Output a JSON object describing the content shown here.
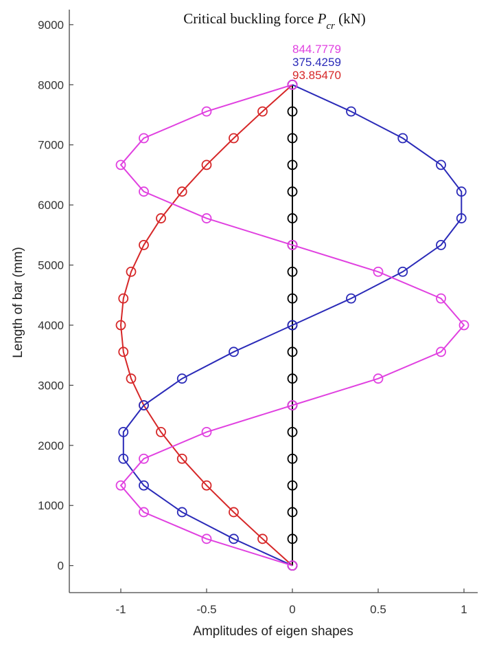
{
  "chart_data": {
    "type": "line",
    "title": "Critical buckling force",
    "title_symbol": "P",
    "title_subscript": "cr",
    "title_unit": "(kN)",
    "xlabel": "Amplitudes of eigen shapes",
    "ylabel": "Length of bar (mm)",
    "xlim": [
      -1.3,
      1.08
    ],
    "ylim": [
      -450,
      9250
    ],
    "xticks": [
      -1,
      -0.5,
      0,
      0.5,
      1
    ],
    "xtick_labels": [
      "-1",
      "-0.5",
      "0",
      "0.5",
      "1"
    ],
    "yticks": [
      0,
      1000,
      2000,
      3000,
      4000,
      5000,
      6000,
      7000,
      8000,
      9000
    ],
    "ytick_labels": [
      "0",
      "1000",
      "2000",
      "3000",
      "4000",
      "5000",
      "6000",
      "7000",
      "8000",
      "9000"
    ],
    "grid": false,
    "y": [
      0,
      444.44,
      888.89,
      1333.33,
      1777.78,
      2222.22,
      2666.67,
      3111.11,
      3555.56,
      4000,
      4444.44,
      4888.89,
      5333.33,
      5777.78,
      6222.22,
      6666.67,
      7111.11,
      7555.56,
      8000
    ],
    "series": [
      {
        "color": "#000000",
        "values": [
          0,
          0,
          0,
          0,
          0,
          0,
          0,
          0,
          0,
          0,
          0,
          0,
          0,
          0,
          0,
          0,
          0,
          0,
          0
        ]
      },
      {
        "color": "#d62728",
        "values": [
          0,
          -0.174,
          -0.342,
          -0.5,
          -0.643,
          -0.766,
          -0.866,
          -0.94,
          -0.985,
          -1.0,
          -0.985,
          -0.94,
          -0.866,
          -0.766,
          -0.643,
          -0.5,
          -0.342,
          -0.174,
          0
        ]
      },
      {
        "color": "#2a2ab8",
        "values": [
          0,
          -0.342,
          -0.643,
          -0.866,
          -0.985,
          -0.985,
          -0.866,
          -0.643,
          -0.342,
          0,
          0.342,
          0.643,
          0.866,
          0.985,
          0.985,
          0.866,
          0.643,
          0.342,
          0
        ]
      },
      {
        "color": "#e040e0",
        "values": [
          0,
          -0.5,
          -0.866,
          -1.0,
          -0.866,
          -0.5,
          0,
          0.5,
          0.866,
          1.0,
          0.866,
          0.5,
          0,
          -0.5,
          -0.866,
          -1.0,
          -0.866,
          -0.5,
          0
        ]
      }
    ],
    "force_labels": [
      {
        "text": "844.7779",
        "color": "#e040e0"
      },
      {
        "text": "375.4259",
        "color": "#2a2ab8"
      },
      {
        "text": "93.85470",
        "color": "#d62728"
      }
    ]
  }
}
